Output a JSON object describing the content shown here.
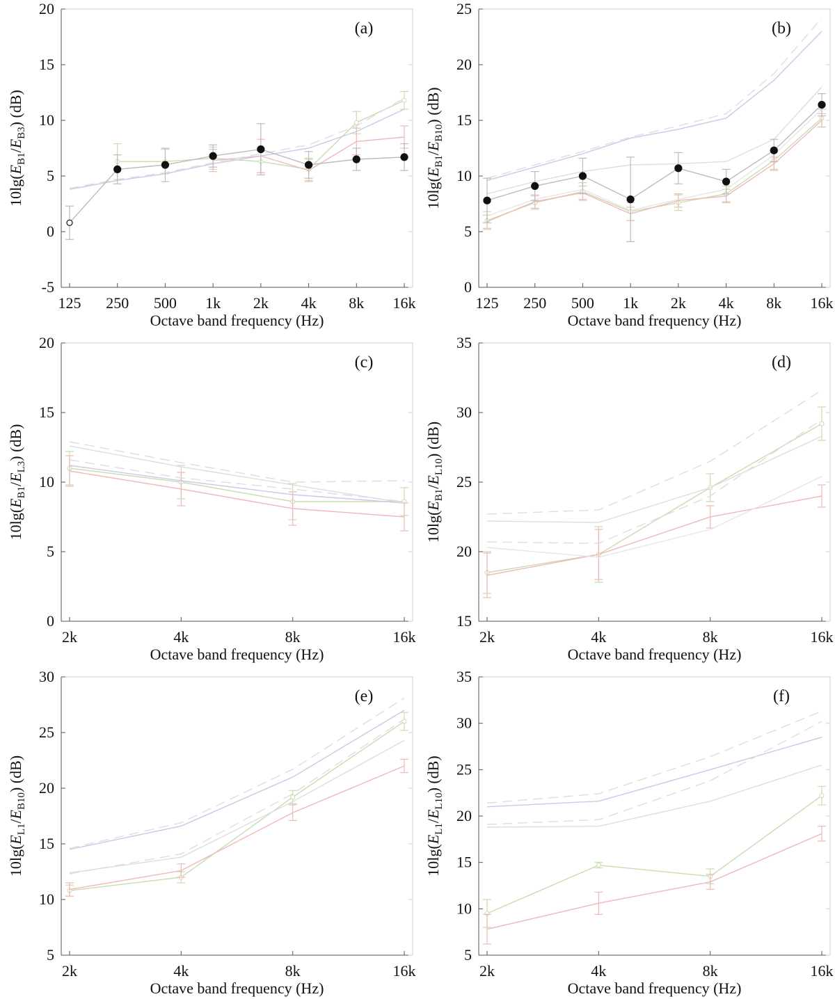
{
  "colors": {
    "axis": "#555555",
    "frame": "#cfcfcf",
    "measured_black": "#111111",
    "measured_green": "#c8dcb0",
    "measured_red": "#f0b8b8",
    "measured_gray": "#cccccc",
    "model_blue": "#c8c8e8",
    "model_dashed_gray": "#dddddd"
  },
  "axis_label_x": "Octave band frequency (Hz)",
  "chart_data": [
    {
      "type": "line",
      "panel": "(a)",
      "ylabel": {
        "pre": "10lg(",
        "a": "E",
        "a_sub": "B1",
        "b": "E",
        "b_sub": "B3",
        "post": ") (dB)"
      },
      "categories": [
        "125",
        "250",
        "500",
        "1k",
        "2k",
        "4k",
        "8k",
        "16k"
      ],
      "ylim": [
        -5,
        20
      ],
      "yticks": [
        -5,
        0,
        5,
        10,
        15,
        20
      ],
      "series": [
        {
          "name": "measured-black",
          "color": "#111111",
          "marker": "filled",
          "values": [
            0.8,
            5.6,
            6.0,
            6.8,
            7.4,
            6.0,
            6.5,
            6.7
          ],
          "err": [
            1.5,
            1.3,
            1.5,
            1.0,
            2.3,
            1.2,
            1.0,
            1.2
          ]
        },
        {
          "name": "measured-green",
          "color": "#c8dcb0",
          "marker": "open",
          "values": [
            null,
            6.3,
            6.3,
            6.6,
            6.3,
            5.6,
            9.8,
            11.8
          ],
          "err": [
            null,
            1.6,
            1.1,
            1.0,
            1.0,
            1.0,
            1.0,
            0.8
          ]
        },
        {
          "name": "measured-red",
          "color": "#f0b8b8",
          "marker": "none",
          "values": [
            null,
            null,
            null,
            6.4,
            6.8,
            5.5,
            8.1,
            8.5
          ],
          "err": [
            null,
            null,
            null,
            1.0,
            1.5,
            1.0,
            1.2,
            1.0
          ]
        },
        {
          "name": "model-blue",
          "color": "#c8c8e8",
          "dash": false,
          "values": [
            3.8,
            4.6,
            5.2,
            6.1,
            6.8,
            7.5,
            9.0,
            11.0
          ]
        },
        {
          "name": "model-dashed",
          "color": "#dddddd",
          "dash": true,
          "values": [
            3.9,
            4.7,
            5.3,
            6.2,
            7.0,
            7.8,
            9.5,
            12.0
          ]
        }
      ]
    },
    {
      "type": "line",
      "panel": "(b)",
      "ylabel": {
        "pre": "10lg(",
        "a": "E",
        "a_sub": "B1",
        "b": "E",
        "b_sub": "B10",
        "post": ") (dB)"
      },
      "categories": [
        "125",
        "250",
        "500",
        "1k",
        "2k",
        "4k",
        "8k",
        "16k"
      ],
      "ylim": [
        0,
        25
      ],
      "yticks": [
        0,
        5,
        10,
        15,
        20,
        25
      ],
      "series": [
        {
          "name": "measured-black",
          "color": "#111111",
          "marker": "filled",
          "values": [
            7.8,
            9.1,
            10.0,
            7.9,
            10.7,
            9.5,
            12.3,
            16.4
          ],
          "err": [
            2.0,
            1.3,
            1.6,
            3.8,
            1.4,
            1.1,
            1.0,
            1.0
          ]
        },
        {
          "name": "measured-green",
          "color": "#c8dcb0",
          "marker": "open",
          "values": [
            6.0,
            7.6,
            8.6,
            6.8,
            7.6,
            8.4,
            11.4,
            15.2
          ],
          "err": [
            0.8,
            0.6,
            0.8,
            0.8,
            0.7,
            0.7,
            0.8,
            0.8
          ]
        },
        {
          "name": "measured-red",
          "color": "#f0b8b8",
          "marker": "none",
          "values": [
            5.9,
            7.7,
            8.5,
            6.6,
            7.8,
            8.2,
            11.1,
            15.0
          ],
          "err": [
            0.6,
            0.6,
            0.6,
            0.6,
            0.6,
            0.6,
            0.6,
            0.6
          ]
        },
        {
          "name": "model-blue",
          "color": "#c8c8e8",
          "dash": false,
          "values": [
            9.6,
            10.8,
            12.0,
            13.4,
            14.2,
            15.2,
            18.6,
            23.0
          ]
        },
        {
          "name": "model-dashed",
          "color": "#dddddd",
          "dash": true,
          "values": [
            9.8,
            11.0,
            12.2,
            13.5,
            14.5,
            15.6,
            19.2,
            24.2
          ]
        },
        {
          "name": "model-gray-mid",
          "color": "#dddddd",
          "dash": false,
          "values": [
            8.4,
            9.5,
            10.4,
            11.0,
            11.1,
            11.3,
            13.3,
            18.0
          ]
        },
        {
          "name": "model-gray-low",
          "color": "#e6e6e6",
          "dash": false,
          "values": [
            6.4,
            7.9,
            8.8,
            6.9,
            7.9,
            8.8,
            11.9,
            16.0
          ]
        }
      ]
    },
    {
      "type": "line",
      "panel": "(c)",
      "ylabel": {
        "pre": "10lg(",
        "a": "E",
        "a_sub": "B1",
        "b": "E",
        "b_sub": "L3",
        "post": ") (dB)"
      },
      "categories": [
        "2k",
        "4k",
        "8k",
        "16k"
      ],
      "ylim": [
        0,
        20
      ],
      "yticks": [
        0,
        5,
        10,
        15,
        20
      ],
      "series": [
        {
          "name": "measured-green",
          "color": "#c8dcb0",
          "marker": "open",
          "values": [
            11.0,
            10.0,
            8.6,
            8.6
          ],
          "err": [
            1.2,
            1.2,
            1.3,
            1.0
          ]
        },
        {
          "name": "measured-red",
          "color": "#f0b8b8",
          "marker": "none",
          "values": [
            10.8,
            9.5,
            8.1,
            7.5
          ],
          "err": [
            1.1,
            1.2,
            1.2,
            1.0
          ]
        },
        {
          "name": "model-blue",
          "color": "#c8c8e8",
          "dash": false,
          "values": [
            11.2,
            10.1,
            9.1,
            8.5
          ]
        },
        {
          "name": "model-dashed-high",
          "color": "#dddddd",
          "dash": true,
          "values": [
            12.9,
            11.4,
            10.0,
            10.1
          ]
        },
        {
          "name": "model-gray-high",
          "color": "#dddddd",
          "dash": false,
          "values": [
            12.6,
            11.1,
            9.8,
            8.5
          ]
        },
        {
          "name": "model-dashed-mid",
          "color": "#dddddd",
          "dash": true,
          "values": [
            11.6,
            10.3,
            9.5,
            8.6
          ]
        }
      ]
    },
    {
      "type": "line",
      "panel": "(d)",
      "ylabel": {
        "pre": "10lg(",
        "a": "E",
        "a_sub": "B1",
        "b": "E",
        "b_sub": "L10",
        "post": ") (dB)"
      },
      "categories": [
        "2k",
        "4k",
        "8k",
        "16k"
      ],
      "ylim": [
        15,
        35
      ],
      "yticks": [
        15,
        20,
        25,
        30,
        35
      ],
      "series": [
        {
          "name": "measured-green",
          "color": "#c8dcb0",
          "marker": "open",
          "values": [
            18.5,
            19.8,
            24.6,
            29.2
          ],
          "err": [
            1.5,
            2.0,
            1.0,
            1.2
          ]
        },
        {
          "name": "measured-red",
          "color": "#f0b8b8",
          "marker": "none",
          "values": [
            18.3,
            19.8,
            22.5,
            24.0
          ],
          "err": [
            1.6,
            1.8,
            0.8,
            0.8
          ]
        },
        {
          "name": "model-dashed-high",
          "color": "#dddddd",
          "dash": true,
          "values": [
            22.7,
            23.0,
            26.5,
            31.6
          ]
        },
        {
          "name": "model-gray-high",
          "color": "#dddddd",
          "dash": false,
          "values": [
            22.2,
            22.1,
            24.6,
            28.3
          ]
        },
        {
          "name": "model-dashed-mid",
          "color": "#dddddd",
          "dash": true,
          "values": [
            20.7,
            20.6,
            24.0,
            29.5
          ]
        },
        {
          "name": "model-gray-low",
          "color": "#e6e6e6",
          "dash": false,
          "values": [
            20.3,
            19.6,
            21.6,
            25.4
          ]
        }
      ]
    },
    {
      "type": "line",
      "panel": "(e)",
      "ylabel": {
        "pre": "10lg(",
        "a": "E",
        "a_sub": "L1",
        "b": "E",
        "b_sub": "B10",
        "post": ") (dB)"
      },
      "categories": [
        "2k",
        "4k",
        "8k",
        "16k"
      ],
      "ylim": [
        5,
        30
      ],
      "yticks": [
        5,
        10,
        15,
        20,
        25,
        30
      ],
      "series": [
        {
          "name": "measured-green",
          "color": "#c8dcb0",
          "marker": "open",
          "values": [
            10.8,
            12.0,
            19.2,
            26.0
          ],
          "err": [
            0.5,
            0.5,
            0.6,
            0.8
          ]
        },
        {
          "name": "measured-red",
          "color": "#f0b8b8",
          "marker": "none",
          "values": [
            10.9,
            12.6,
            17.8,
            22.0
          ],
          "err": [
            0.6,
            0.6,
            0.7,
            0.6
          ]
        },
        {
          "name": "model-blue",
          "color": "#c8c8e8",
          "dash": false,
          "values": [
            14.5,
            16.6,
            21.0,
            27.0
          ]
        },
        {
          "name": "model-dashed-high",
          "color": "#dddddd",
          "dash": true,
          "values": [
            14.6,
            16.9,
            21.7,
            28.1
          ]
        },
        {
          "name": "model-gray-mid",
          "color": "#dddddd",
          "dash": false,
          "values": [
            12.4,
            13.8,
            18.8,
            24.3
          ]
        },
        {
          "name": "model-dashed-mid",
          "color": "#dddddd",
          "dash": true,
          "values": [
            12.3,
            14.1,
            19.5,
            26.2
          ]
        }
      ]
    },
    {
      "type": "line",
      "panel": "(f)",
      "ylabel": {
        "pre": "10lg(",
        "a": "E",
        "a_sub": "L1",
        "b": "E",
        "b_sub": "L10",
        "post": ") (dB)"
      },
      "categories": [
        "2k",
        "4k",
        "8k",
        "16k"
      ],
      "ylim": [
        5,
        35
      ],
      "yticks": [
        5,
        10,
        15,
        20,
        25,
        30,
        35
      ],
      "series": [
        {
          "name": "measured-green",
          "color": "#c8dcb0",
          "marker": "open",
          "values": [
            9.5,
            14.7,
            13.5,
            22.2
          ],
          "err": [
            1.5,
            0.3,
            0.8,
            1.0
          ]
        },
        {
          "name": "measured-red",
          "color": "#f0b8b8",
          "marker": "none",
          "values": [
            7.8,
            10.6,
            12.9,
            18.1
          ],
          "err": [
            1.6,
            1.2,
            0.8,
            0.8
          ]
        },
        {
          "name": "model-blue",
          "color": "#c8c8e8",
          "dash": false,
          "values": [
            21.0,
            21.6,
            25.0,
            28.5
          ]
        },
        {
          "name": "model-dashed-high",
          "color": "#dddddd",
          "dash": true,
          "values": [
            21.4,
            22.4,
            26.4,
            31.3
          ]
        },
        {
          "name": "model-gray-mid",
          "color": "#dddddd",
          "dash": false,
          "values": [
            18.8,
            18.9,
            21.6,
            25.5
          ]
        },
        {
          "name": "model-dashed-mid",
          "color": "#dddddd",
          "dash": true,
          "values": [
            19.1,
            19.6,
            23.8,
            30.2
          ]
        }
      ]
    }
  ]
}
